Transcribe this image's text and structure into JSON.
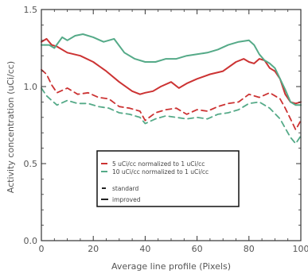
{
  "chart_data": {
    "type": "line",
    "title": "",
    "xlabel": "Average line profile (Pixels)",
    "ylabel": "Activity concentration (uCi/cc)",
    "xlim": [
      0,
      100
    ],
    "ylim": [
      0.0,
      1.5
    ],
    "x_ticks": [
      "0",
      "20",
      "40",
      "60",
      "80",
      "100"
    ],
    "y_ticks": [
      "0.0",
      "0.5",
      "1.0",
      "1.5"
    ],
    "grid": false,
    "legend": {
      "placement": "center-bottom",
      "entries": [
        {
          "label": "5 uCi/cc  normalized to 1 uCi/cc",
          "color": "#cc3333",
          "marker": "—"
        },
        {
          "label": "10 uCi/cc  normalized to 1 uCi/cc",
          "color": "#55aa88",
          "marker": "—"
        },
        {
          "label": "standard",
          "color": "#222222",
          "marker": "–"
        },
        {
          "label": "improved",
          "color": "#222222",
          "marker": "—"
        }
      ]
    },
    "colors": {
      "red": "#cc3333",
      "green": "#55aa88",
      "frame": "#333333"
    },
    "series": [
      {
        "name": "5 uCi/cc normalized to 1 uCi/cc improved",
        "color": "#cc3333",
        "style": "solid",
        "x": [
          0,
          2,
          4,
          6,
          10,
          15,
          20,
          25,
          30,
          35,
          38,
          40,
          43,
          46,
          50,
          53,
          56,
          60,
          65,
          70,
          75,
          78,
          80,
          82,
          84,
          86,
          88,
          90,
          92,
          94,
          96,
          98,
          100
        ],
        "y": [
          1.29,
          1.31,
          1.27,
          1.26,
          1.22,
          1.2,
          1.16,
          1.1,
          1.03,
          0.97,
          0.95,
          0.96,
          0.97,
          1.0,
          1.03,
          0.99,
          1.02,
          1.05,
          1.08,
          1.1,
          1.16,
          1.18,
          1.16,
          1.15,
          1.18,
          1.17,
          1.12,
          1.1,
          1.05,
          0.95,
          0.9,
          0.89,
          0.9
        ]
      },
      {
        "name": "10 uCi/cc normalized to 1 uCi/cc improved",
        "color": "#55aa88",
        "style": "solid",
        "x": [
          0,
          3,
          5,
          8,
          10,
          13,
          16,
          20,
          24,
          28,
          32,
          36,
          40,
          44,
          48,
          52,
          56,
          60,
          64,
          68,
          72,
          76,
          80,
          82,
          84,
          86,
          88,
          90,
          92,
          94,
          96,
          98,
          100
        ],
        "y": [
          1.27,
          1.27,
          1.25,
          1.32,
          1.3,
          1.33,
          1.34,
          1.32,
          1.29,
          1.31,
          1.22,
          1.18,
          1.16,
          1.16,
          1.18,
          1.18,
          1.2,
          1.21,
          1.22,
          1.24,
          1.27,
          1.29,
          1.3,
          1.27,
          1.21,
          1.17,
          1.15,
          1.12,
          1.05,
          0.98,
          0.9,
          0.88,
          0.88
        ]
      },
      {
        "name": "5 uCi/cc normalized to 1 uCi/cc standard",
        "color": "#cc3333",
        "style": "dashed",
        "x": [
          0,
          2,
          4,
          6,
          10,
          14,
          18,
          22,
          26,
          30,
          34,
          38,
          40,
          44,
          48,
          52,
          56,
          60,
          64,
          68,
          72,
          76,
          80,
          84,
          88,
          92,
          94,
          96,
          98,
          100
        ],
        "y": [
          1.11,
          1.08,
          1.01,
          0.96,
          0.99,
          0.95,
          0.96,
          0.93,
          0.92,
          0.87,
          0.86,
          0.84,
          0.78,
          0.83,
          0.85,
          0.86,
          0.82,
          0.85,
          0.84,
          0.87,
          0.89,
          0.9,
          0.95,
          0.93,
          0.96,
          0.92,
          0.86,
          0.79,
          0.72,
          0.78
        ]
      },
      {
        "name": "10 uCi/cc normalized to 1 uCi/cc standard",
        "color": "#55aa88",
        "style": "dashed",
        "x": [
          0,
          2,
          4,
          6,
          10,
          14,
          18,
          22,
          26,
          30,
          34,
          38,
          40,
          44,
          48,
          52,
          56,
          60,
          64,
          68,
          72,
          76,
          80,
          84,
          88,
          92,
          94,
          96,
          98,
          100
        ],
        "y": [
          0.99,
          0.94,
          0.91,
          0.88,
          0.91,
          0.89,
          0.89,
          0.87,
          0.86,
          0.83,
          0.82,
          0.8,
          0.76,
          0.79,
          0.81,
          0.8,
          0.79,
          0.8,
          0.79,
          0.82,
          0.83,
          0.85,
          0.89,
          0.9,
          0.86,
          0.79,
          0.73,
          0.67,
          0.63,
          0.68
        ]
      }
    ]
  }
}
